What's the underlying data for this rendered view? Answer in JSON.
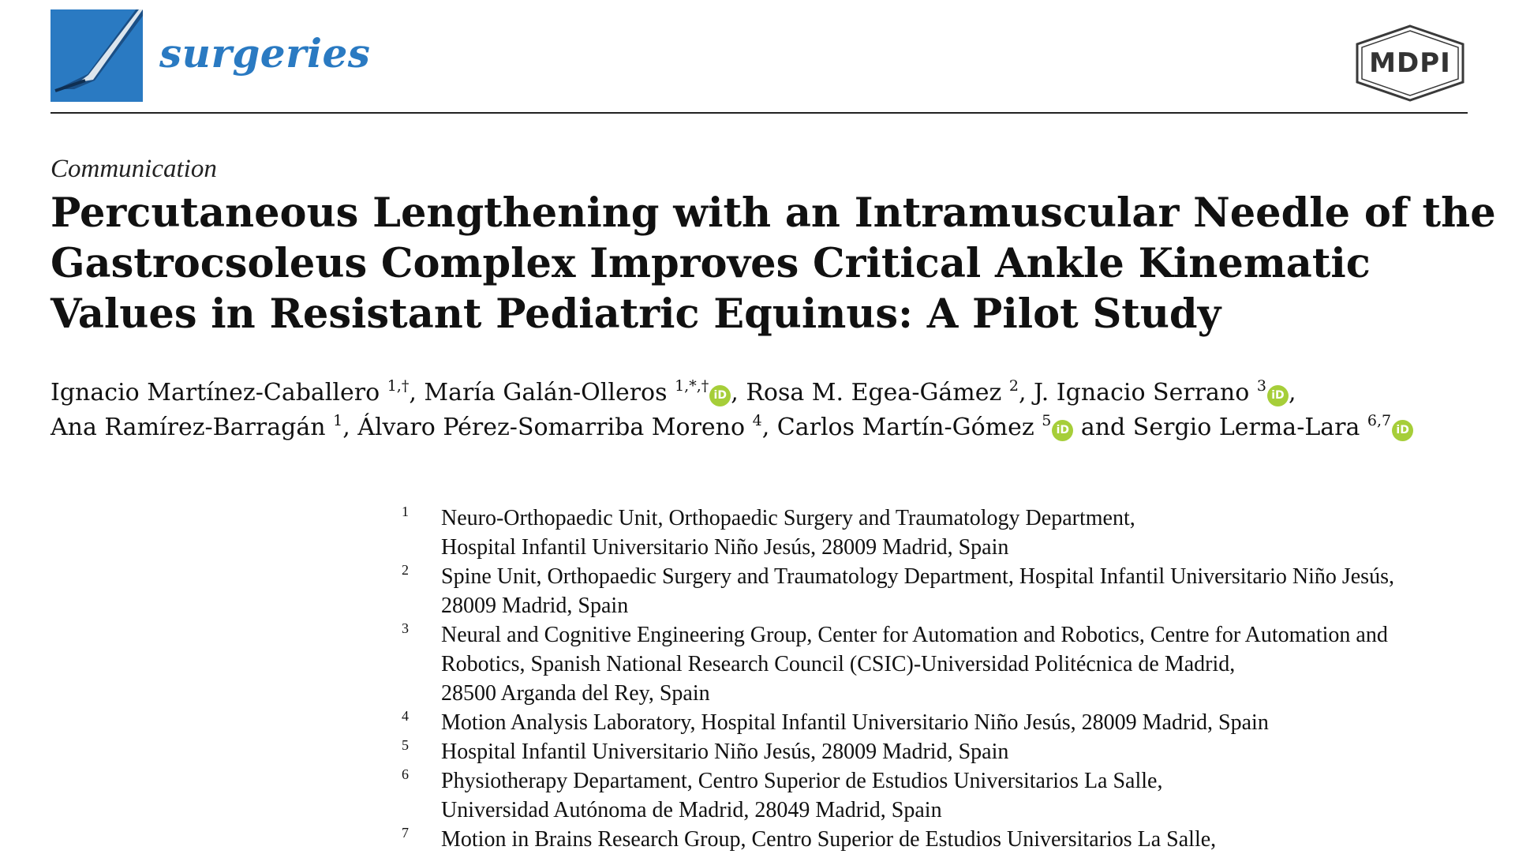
{
  "header": {
    "journal_name": "surgeries",
    "publisher": "MDPI",
    "brand_color": "#2a7ac2",
    "logo_icon": "scalpel-icon"
  },
  "article_type": "Communication",
  "title_lines": [
    "Percutaneous Lengthening with an Intramuscular Needle of the",
    "Gastrocsoleus Complex Improves Critical Ankle Kinematic",
    "Values in Resistant Pediatric Equinus: A Pilot Study"
  ],
  "authors": {
    "a1": {
      "name": "Ignacio Martínez-Caballero",
      "sup": "1,†"
    },
    "a2": {
      "name": "María Galán-Olleros",
      "sup": "1,*,†"
    },
    "a3": {
      "name": "Rosa M. Egea-Gámez",
      "sup": "2"
    },
    "a4": {
      "name": "J. Ignacio Serrano",
      "sup": "3"
    },
    "a5": {
      "name": "Ana Ramírez-Barragán",
      "sup": "1"
    },
    "a6": {
      "name": "Álvaro Pérez-Somarriba Moreno",
      "sup": "4"
    },
    "a7": {
      "name": "Carlos Martín-Gómez",
      "sup": "5"
    },
    "a8": {
      "name": "Sergio Lerma-Lara",
      "sup": "6,7"
    },
    "and_word": "and",
    "orcid_color": "#a6ce39",
    "orcid_icon": "orcid-icon"
  },
  "affiliations": [
    {
      "num": "1",
      "lines": [
        "Neuro-Orthopaedic Unit, Orthopaedic Surgery and Traumatology Department,",
        "Hospital Infantil Universitario Niño Jesús, 28009 Madrid, Spain"
      ]
    },
    {
      "num": "2",
      "lines": [
        "Spine Unit, Orthopaedic Surgery and Traumatology Department, Hospital Infantil Universitario Niño Jesús,",
        "28009 Madrid, Spain"
      ]
    },
    {
      "num": "3",
      "lines": [
        "Neural and Cognitive Engineering Group, Center for Automation and Robotics, Centre for Automation and",
        "Robotics, Spanish National Research Council (CSIC)-Universidad Politécnica de Madrid,",
        "28500 Arganda del Rey, Spain"
      ]
    },
    {
      "num": "4",
      "lines": [
        "Motion Analysis Laboratory, Hospital Infantil Universitario Niño Jesús, 28009 Madrid, Spain"
      ]
    },
    {
      "num": "5",
      "lines": [
        "Hospital Infantil Universitario Niño Jesús, 28009 Madrid, Spain"
      ]
    },
    {
      "num": "6",
      "lines": [
        "Physiotherapy Departament, Centro Superior de Estudios Universitarios La Salle,",
        "Universidad Autónoma de Madrid, 28049 Madrid, Spain"
      ]
    },
    {
      "num": "7",
      "lines": [
        "Motion in Brains Research Group, Centro Superior de Estudios Universitarios La Salle,"
      ]
    }
  ]
}
